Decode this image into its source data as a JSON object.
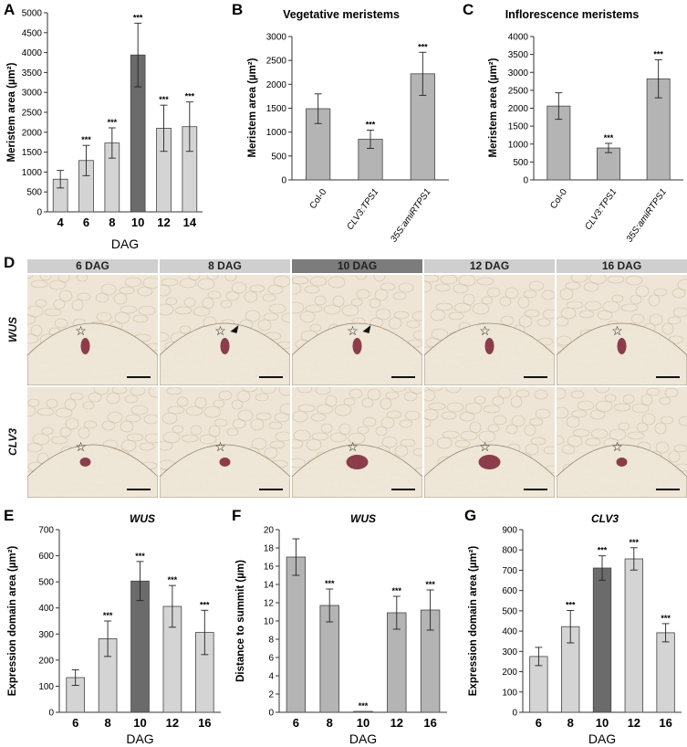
{
  "figure": {
    "panel_letters": [
      "A",
      "B",
      "C",
      "D",
      "E",
      "F",
      "G"
    ],
    "significance_mark": "***",
    "colors": {
      "bar_light": "#d4d4d4",
      "bar_mid": "#b4b4b4",
      "bar_dark": "#6b6b6b",
      "header_light": "#cfcfcf",
      "header_dark": "#7c7c7c",
      "tissue": "#eee5d6",
      "stain": "#7a1f33"
    },
    "micrographs": {
      "columns": [
        "6 DAG",
        "8 DAG",
        "10 DAG",
        "12 DAG",
        "16 DAG"
      ],
      "highlight_column": "10 DAG",
      "rows": [
        "WUS",
        "CLV3"
      ],
      "star_symbol": "☆",
      "arrowheads_in": {
        "WUS": [
          "8 DAG",
          "10 DAG"
        ]
      }
    }
  },
  "chart_data": [
    {
      "panel": "A",
      "type": "bar",
      "title": "",
      "xlabel": "DAG",
      "ylabel": "Meristem area (µm²)",
      "categories": [
        "4",
        "6",
        "8",
        "10",
        "12",
        "14"
      ],
      "values": [
        820,
        1290,
        1730,
        3940,
        2100,
        2140
      ],
      "errors": [
        220,
        380,
        380,
        800,
        580,
        620
      ],
      "significance": [
        "",
        "***",
        "***",
        "***",
        "***",
        "***"
      ],
      "highlight": [
        "10"
      ],
      "ylim": [
        0,
        5000
      ],
      "yticks": [
        0,
        500,
        1000,
        1500,
        2000,
        2500,
        3000,
        3500,
        4000,
        4500,
        5000
      ],
      "xtick_style": "bold"
    },
    {
      "panel": "B",
      "type": "bar",
      "title": "Vegetative meristems",
      "xlabel": "",
      "ylabel": "Meristem area (µm²)",
      "categories": [
        "Col-0",
        "CLV3:TPS1",
        "35S:amiRTPS1"
      ],
      "values": [
        1490,
        850,
        2220
      ],
      "errors": [
        310,
        190,
        450
      ],
      "significance": [
        "",
        "***",
        "***"
      ],
      "highlight": [],
      "ylim": [
        0,
        3000
      ],
      "yticks": [
        0,
        500,
        1000,
        1500,
        2000,
        2500,
        3000
      ],
      "xtick_style": "rotated"
    },
    {
      "panel": "C",
      "type": "bar",
      "title": "Inflorescence meristems",
      "xlabel": "",
      "ylabel": "Meristem area (µm²)",
      "categories": [
        "Col-0",
        "CLV3:TPS1",
        "35S:amiRTPS1"
      ],
      "values": [
        2060,
        890,
        2820
      ],
      "errors": [
        370,
        130,
        530
      ],
      "significance": [
        "",
        "***",
        "***"
      ],
      "highlight": [],
      "ylim": [
        0,
        4000
      ],
      "yticks": [
        0,
        500,
        1000,
        1500,
        2000,
        2500,
        3000,
        3500,
        4000
      ],
      "xtick_style": "rotated"
    },
    {
      "panel": "E",
      "type": "bar",
      "title": "WUS",
      "xlabel": "DAG",
      "ylabel": "Expression domain area (µm²)",
      "categories": [
        "6",
        "8",
        "10",
        "12",
        "16"
      ],
      "values": [
        133,
        282,
        503,
        406,
        306
      ],
      "errors": [
        30,
        68,
        75,
        80,
        85
      ],
      "significance": [
        "",
        "***",
        "***",
        "***",
        "***"
      ],
      "highlight": [
        "10"
      ],
      "ylim": [
        0,
        700
      ],
      "yticks": [
        0,
        100,
        200,
        300,
        400,
        500,
        600,
        700
      ],
      "xtick_style": "bold"
    },
    {
      "panel": "F",
      "type": "bar",
      "title": "WUS",
      "xlabel": "DAG",
      "ylabel": "Distance to summit (µm)",
      "categories": [
        "6",
        "8",
        "10",
        "12",
        "16"
      ],
      "values": [
        17.0,
        11.7,
        0.1,
        10.9,
        11.2
      ],
      "errors": [
        2.0,
        1.8,
        0,
        1.8,
        2.2
      ],
      "significance": [
        "",
        "***",
        "***",
        "***",
        "***"
      ],
      "highlight": [],
      "ylim": [
        0,
        20
      ],
      "yticks": [
        0,
        2,
        4,
        6,
        8,
        10,
        12,
        14,
        16,
        18,
        20
      ],
      "xtick_style": "bold"
    },
    {
      "panel": "G",
      "type": "bar",
      "title": "CLV3",
      "xlabel": "DAG",
      "ylabel": "Expression domain area (µm²)",
      "categories": [
        "6",
        "8",
        "10",
        "12",
        "16"
      ],
      "values": [
        275,
        422,
        711,
        756,
        392
      ],
      "errors": [
        45,
        80,
        60,
        55,
        45
      ],
      "significance": [
        "",
        "***",
        "***",
        "***",
        "***"
      ],
      "highlight": [
        "10"
      ],
      "ylim": [
        0,
        900
      ],
      "yticks": [
        0,
        100,
        200,
        300,
        400,
        500,
        600,
        700,
        800,
        900
      ],
      "xtick_style": "bold"
    }
  ]
}
